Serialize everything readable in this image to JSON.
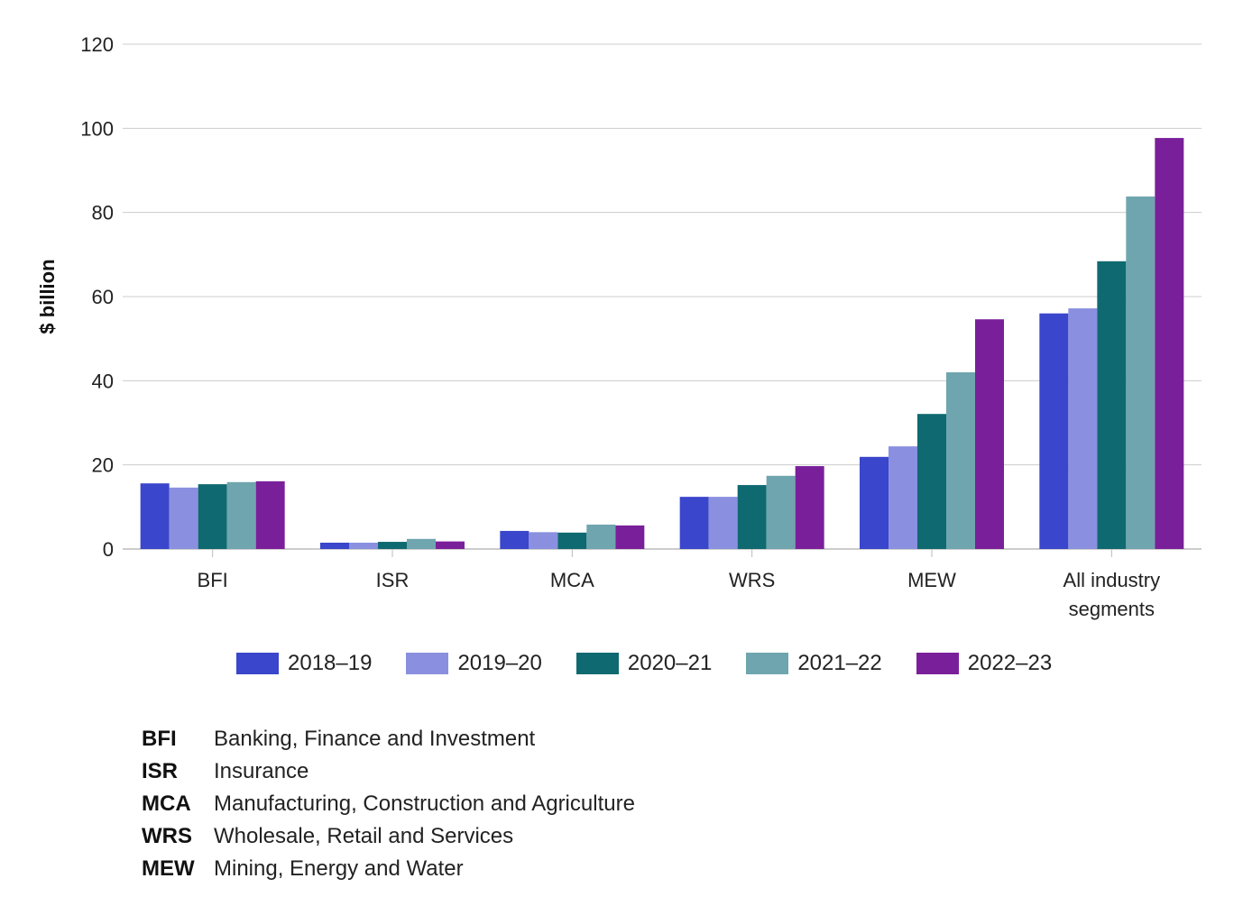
{
  "chart_data": {
    "type": "bar",
    "title": "",
    "xlabel": "",
    "ylabel": "$ billion",
    "ylim": [
      0,
      120
    ],
    "yticks": [
      0,
      20,
      40,
      60,
      80,
      100,
      120
    ],
    "grid": true,
    "legend_position": "bottom",
    "categories": [
      "BFI",
      "ISR",
      "MCA",
      "WRS",
      "MEW",
      "All industry segments"
    ],
    "category_lines": [
      [
        "BFI"
      ],
      [
        "ISR"
      ],
      [
        "MCA"
      ],
      [
        "WRS"
      ],
      [
        "MEW"
      ],
      [
        "All industry",
        "segments"
      ]
    ],
    "series": [
      {
        "name": "2018–19",
        "color": "#3a46cb",
        "values": [
          15.6,
          1.5,
          4.3,
          12.4,
          21.9,
          56.0
        ]
      },
      {
        "name": "2019–20",
        "color": "#8a90df",
        "values": [
          14.6,
          1.5,
          4.0,
          12.4,
          24.4,
          57.2
        ]
      },
      {
        "name": "2020–21",
        "color": "#0f6970",
        "values": [
          15.4,
          1.7,
          3.9,
          15.2,
          32.1,
          68.4
        ]
      },
      {
        "name": "2021–22",
        "color": "#6fa5ae",
        "values": [
          15.9,
          2.4,
          5.8,
          17.4,
          42.0,
          83.8
        ]
      },
      {
        "name": "2022–23",
        "color": "#7a1f9a",
        "values": [
          16.1,
          1.8,
          5.6,
          19.7,
          54.6,
          97.7
        ]
      }
    ]
  },
  "abbreviations": [
    {
      "key": "BFI",
      "text": "Banking, Finance and Investment"
    },
    {
      "key": "ISR",
      "text": "Insurance"
    },
    {
      "key": "MCA",
      "text": "Manufacturing, Construction and Agriculture"
    },
    {
      "key": "WRS",
      "text": "Wholesale, Retail and Services"
    },
    {
      "key": "MEW",
      "text": "Mining, Energy and Water"
    }
  ]
}
